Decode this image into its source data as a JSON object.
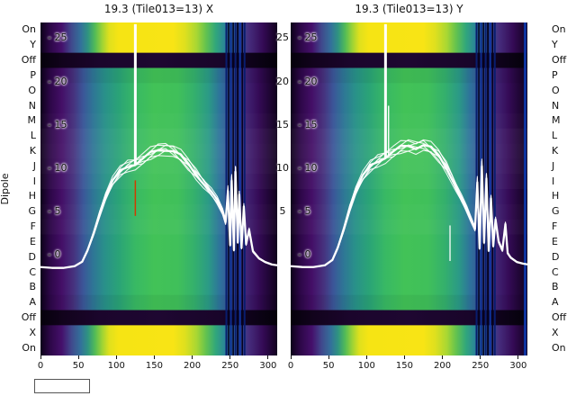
{
  "chart_data": {
    "type": "heatmap+line",
    "ylabel": "Dipole",
    "x_range": [
      0,
      312
    ],
    "value_range": [
      -11.6,
      26.8
    ],
    "x_ticks": [
      0,
      50,
      100,
      150,
      200,
      250,
      300
    ],
    "x_tick_labels": [
      "0",
      "50",
      "100",
      "150",
      "200",
      "250",
      "300"
    ],
    "value_ticks": [
      25,
      20,
      15,
      10,
      5,
      0
    ],
    "value_tick_labels": [
      "- 25",
      "- 20",
      "- 15",
      "- 10",
      "- 5",
      "- 0"
    ],
    "mid_ticks": [
      25,
      20,
      15,
      10,
      5
    ],
    "mid_tick_labels": [
      "25",
      "20",
      "15",
      "10",
      "5"
    ],
    "rows": [
      "On",
      "Y",
      "Off",
      "P",
      "O",
      "N",
      "M",
      "L",
      "K",
      "J",
      "I",
      "H",
      "G",
      "F",
      "E",
      "D",
      "C",
      "B",
      "A",
      "Off",
      "X",
      "On"
    ],
    "row_types": [
      "hot",
      "hot",
      "off",
      "mid",
      "mid",
      "mid",
      "mid",
      "mid",
      "mid",
      "mid",
      "mid",
      "mid",
      "mid",
      "mid",
      "mid",
      "mid",
      "mid",
      "mid",
      "mid",
      "off",
      "hot",
      "hot"
    ],
    "row_gain": [
      0,
      0,
      0,
      -0.05,
      0,
      0,
      0.02,
      0.05,
      0.06,
      0.05,
      0.03,
      0,
      0.02,
      0.03,
      0,
      0,
      0,
      0,
      -0.05,
      0,
      0,
      0
    ],
    "line_color": "#ffffff",
    "gradients": {
      "hot": [
        [
          0.0,
          "#0d0119"
        ],
        [
          0.04,
          "#2c0747"
        ],
        [
          0.09,
          "#45106b"
        ],
        [
          0.13,
          "#40488c"
        ],
        [
          0.17,
          "#33719a"
        ],
        [
          0.2,
          "#2f9381"
        ],
        [
          0.23,
          "#52bb57"
        ],
        [
          0.26,
          "#9cd335"
        ],
        [
          0.29,
          "#dfe01d"
        ],
        [
          0.33,
          "#f6e414"
        ],
        [
          0.56,
          "#f8e415"
        ],
        [
          0.61,
          "#dfe01e"
        ],
        [
          0.66,
          "#a8d733"
        ],
        [
          0.7,
          "#62c24f"
        ],
        [
          0.74,
          "#31a77b"
        ],
        [
          0.78,
          "#2b8498"
        ],
        [
          0.83,
          "#3a5a9c"
        ],
        [
          0.88,
          "#462d7d"
        ],
        [
          0.94,
          "#340a55"
        ],
        [
          1.0,
          "#12021f"
        ]
      ],
      "mid": [
        [
          0.0,
          "#0d0119"
        ],
        [
          0.04,
          "#2c0747"
        ],
        [
          0.09,
          "#440f67"
        ],
        [
          0.14,
          "#46327e"
        ],
        [
          0.18,
          "#3b5698"
        ],
        [
          0.22,
          "#2f7496"
        ],
        [
          0.27,
          "#29908a"
        ],
        [
          0.33,
          "#2aa377"
        ],
        [
          0.4,
          "#38b964"
        ],
        [
          0.48,
          "#42c257"
        ],
        [
          0.58,
          "#40c05a"
        ],
        [
          0.65,
          "#34b06c"
        ],
        [
          0.71,
          "#2b9a86"
        ],
        [
          0.76,
          "#2e719c"
        ],
        [
          0.81,
          "#3b4f95"
        ],
        [
          0.86,
          "#44297b"
        ],
        [
          0.92,
          "#350b57"
        ],
        [
          1.0,
          "#10021c"
        ]
      ],
      "off": [
        [
          0.0,
          "#05010b"
        ],
        [
          0.1,
          "#12031d"
        ],
        [
          0.25,
          "#1b052c"
        ],
        [
          0.5,
          "#1e0731"
        ],
        [
          0.75,
          "#19052a"
        ],
        [
          0.9,
          "#0d0218"
        ],
        [
          1.0,
          "#04010a"
        ]
      ]
    },
    "ensemble": {
      "count": 7,
      "spread": 0.2,
      "jitter": 0.3
    },
    "plots": [
      {
        "title": "19.3 (Tile013=13) X",
        "profile": {
          "x": [
            0,
            15,
            30,
            45,
            55,
            62,
            70,
            78,
            86,
            95,
            105,
            115,
            125,
            135,
            145,
            155,
            165,
            175,
            185,
            195,
            205,
            215,
            225,
            233,
            240,
            244,
            247,
            250,
            252,
            255,
            257,
            260,
            262,
            265,
            268,
            271,
            275,
            280,
            288,
            296,
            305,
            312
          ],
          "v": [
            -1.4,
            -1.5,
            -1.5,
            -1.3,
            -0.8,
            0.5,
            2.5,
            4.8,
            6.8,
            8.4,
            9.6,
            10.3,
            10.6,
            11.0,
            11.6,
            12.1,
            12.3,
            12.0,
            11.3,
            10.4,
            9.4,
            8.3,
            7.2,
            6.2,
            5.0,
            3.8,
            7.5,
            1.2,
            8.8,
            0.6,
            9.8,
            1.5,
            7.0,
            0.8,
            5.5,
            1.2,
            2.8,
            0.4,
            -0.4,
            -0.8,
            -1.1,
            -1.2
          ]
        },
        "spikes": [
          {
            "x": 125,
            "v0": 10.4,
            "v1": 26.6,
            "w": 3
          }
        ],
        "marks": [
          {
            "x": 125,
            "v0": 4.5,
            "v1": 8.6,
            "w": 1.5,
            "color": "#d03a00"
          }
        ],
        "stripes": [
          {
            "x": 245,
            "w": 2,
            "color": "#081d6e"
          },
          {
            "x": 248,
            "w": 1.6,
            "color": "#04021f"
          },
          {
            "x": 251,
            "w": 2,
            "color": "#0a2a8c"
          },
          {
            "x": 254,
            "w": 1.6,
            "color": "#04021f"
          },
          {
            "x": 257,
            "w": 2,
            "color": "#081d6e"
          },
          {
            "x": 260,
            "w": 2,
            "color": "#04021f"
          },
          {
            "x": 263,
            "w": 2,
            "color": "#0d34a0"
          },
          {
            "x": 266,
            "w": 1.6,
            "color": "#04021f"
          },
          {
            "x": 269,
            "w": 2,
            "color": "#081d6e"
          }
        ]
      },
      {
        "title": "19.3 (Tile013=13) Y",
        "profile": {
          "x": [
            0,
            15,
            30,
            45,
            55,
            62,
            70,
            78,
            86,
            95,
            105,
            115,
            125,
            135,
            145,
            155,
            165,
            175,
            185,
            195,
            205,
            212,
            218,
            225,
            232,
            238,
            243,
            246,
            249,
            252,
            255,
            258,
            261,
            264,
            267,
            270,
            274,
            279,
            283,
            286,
            290,
            298,
            306,
            312
          ],
          "v": [
            -1.3,
            -1.4,
            -1.4,
            -1.2,
            -0.6,
            0.8,
            3.0,
            5.5,
            7.5,
            9.0,
            10.2,
            10.9,
            11.4,
            11.8,
            12.3,
            12.6,
            12.5,
            12.7,
            12.2,
            11.4,
            10.2,
            9.0,
            7.8,
            6.5,
            5.2,
            4.0,
            3.0,
            8.5,
            0.8,
            10.5,
            1.5,
            9.0,
            0.5,
            6.5,
            1.0,
            4.0,
            1.5,
            0.5,
            3.5,
            0.2,
            -0.3,
            -0.8,
            -1.0,
            -1.1
          ]
        },
        "spikes": [
          {
            "x": 125,
            "v0": 11.2,
            "v1": 26.6,
            "w": 3
          },
          {
            "x": 129,
            "v0": 11.5,
            "v1": 17.2,
            "w": 1.4
          },
          {
            "x": 210,
            "v0": -0.7,
            "v1": 3.4,
            "w": 1.3
          }
        ],
        "marks": [],
        "stripes": [
          {
            "x": 245,
            "w": 2,
            "color": "#081d6e"
          },
          {
            "x": 248,
            "w": 1.6,
            "color": "#04021f"
          },
          {
            "x": 251,
            "w": 2,
            "color": "#0a2a8c"
          },
          {
            "x": 254,
            "w": 1.6,
            "color": "#04021f"
          },
          {
            "x": 257,
            "w": 2,
            "color": "#081d6e"
          },
          {
            "x": 260,
            "w": 2,
            "color": "#04021f"
          },
          {
            "x": 263,
            "w": 2,
            "color": "#0d34a0"
          },
          {
            "x": 266,
            "w": 1.6,
            "color": "#04021f"
          },
          {
            "x": 269,
            "w": 2,
            "color": "#081d6e"
          },
          {
            "x": 309,
            "w": 3,
            "color": "#0d34a0"
          }
        ]
      }
    ]
  }
}
